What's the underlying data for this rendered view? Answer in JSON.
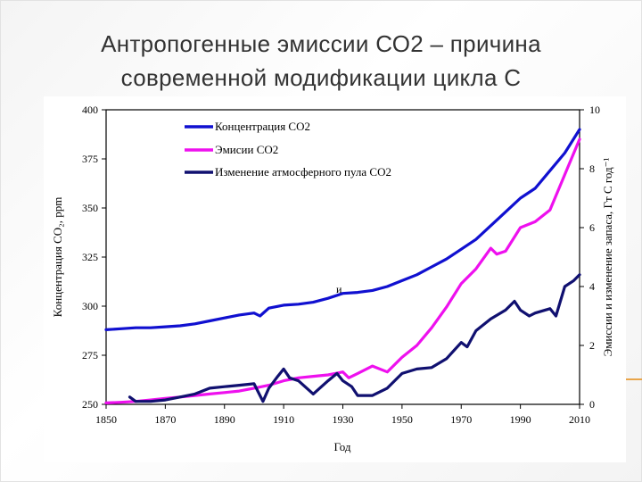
{
  "slide": {
    "title_line1": "Антропогенные эмиссии СО2 – причина",
    "title_line2": "современной модификации цикла С"
  },
  "chart_data": {
    "type": "line",
    "xlabel": "Год",
    "ylabel_left": "Концентрация СО₂, ppm",
    "ylabel_right": "Эмиссии и изменение запаса, Гт С год⁻¹",
    "xlim": [
      1850,
      2010
    ],
    "ylim_left": [
      250,
      400
    ],
    "ylim_right": [
      0,
      10
    ],
    "x_ticks": [
      1850,
      1870,
      1890,
      1910,
      1930,
      1950,
      1970,
      1990,
      2010
    ],
    "y_ticks_left": [
      250,
      275,
      300,
      325,
      350,
      375,
      400
    ],
    "y_ticks_right": [
      0,
      2,
      4,
      6,
      8,
      10
    ],
    "annotation": "и",
    "legend_position": "top-left",
    "series": [
      {
        "name": "Концентрация СО2",
        "axis": "left",
        "color": "#1010d0",
        "x": [
          1850,
          1855,
          1860,
          1865,
          1870,
          1875,
          1880,
          1885,
          1890,
          1895,
          1900,
          1902,
          1905,
          1910,
          1915,
          1920,
          1925,
          1930,
          1935,
          1940,
          1945,
          1950,
          1955,
          1960,
          1965,
          1970,
          1975,
          1980,
          1985,
          1990,
          1995,
          2000,
          2005,
          2010
        ],
        "y": [
          288,
          288.5,
          289,
          289,
          289.5,
          290,
          291,
          292.5,
          294,
          295.5,
          296.5,
          295,
          299,
          300.5,
          301,
          302,
          304,
          306.5,
          307,
          308,
          310,
          313,
          316,
          320,
          324,
          329,
          334,
          341,
          348,
          355,
          360,
          369,
          378,
          390
        ]
      },
      {
        "name": "Эмисии СО2",
        "axis": "right",
        "color": "#ee10ee",
        "x": [
          1850,
          1855,
          1860,
          1865,
          1870,
          1875,
          1880,
          1885,
          1890,
          1895,
          1900,
          1905,
          1910,
          1915,
          1920,
          1925,
          1930,
          1932,
          1935,
          1940,
          1945,
          1950,
          1955,
          1960,
          1965,
          1970,
          1975,
          1980,
          1982,
          1985,
          1990,
          1995,
          2000,
          2005,
          2010
        ],
        "y": [
          0.05,
          0.07,
          0.1,
          0.15,
          0.2,
          0.25,
          0.3,
          0.35,
          0.4,
          0.45,
          0.55,
          0.65,
          0.8,
          0.9,
          0.95,
          1.0,
          1.1,
          0.9,
          1.05,
          1.3,
          1.1,
          1.6,
          2.0,
          2.6,
          3.3,
          4.1,
          4.6,
          5.3,
          5.1,
          5.2,
          6.0,
          6.2,
          6.6,
          7.8,
          9.0
        ]
      },
      {
        "name": "Изменение атмосферного пула СО2",
        "axis": "right",
        "color": "#101070",
        "x": [
          1858,
          1860,
          1865,
          1870,
          1875,
          1880,
          1885,
          1890,
          1895,
          1900,
          1903,
          1905,
          1908,
          1910,
          1912,
          1915,
          1920,
          1925,
          1928,
          1930,
          1933,
          1935,
          1940,
          1945,
          1950,
          1955,
          1960,
          1965,
          1970,
          1972,
          1975,
          1980,
          1985,
          1988,
          1990,
          1993,
          1995,
          2000,
          2002,
          2005,
          2008,
          2010
        ],
        "y": [
          0.25,
          0.1,
          0.1,
          0.15,
          0.25,
          0.35,
          0.55,
          0.6,
          0.65,
          0.7,
          0.1,
          0.55,
          0.95,
          1.2,
          0.9,
          0.8,
          0.35,
          0.8,
          1.05,
          0.8,
          0.6,
          0.3,
          0.3,
          0.55,
          1.05,
          1.2,
          1.25,
          1.55,
          2.1,
          1.95,
          2.5,
          2.9,
          3.2,
          3.5,
          3.2,
          3.0,
          3.1,
          3.25,
          3.0,
          4.0,
          4.2,
          4.4
        ]
      }
    ]
  }
}
